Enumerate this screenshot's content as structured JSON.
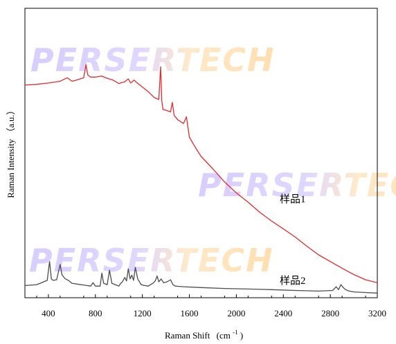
{
  "chart_data": {
    "type": "line",
    "title": "",
    "xlabel": "Raman Shift",
    "xlabel_unit": "(cm",
    "xlabel_sup": "-1",
    "xlabel_close": ")",
    "ylabel": "Raman Intensity （a.u.）",
    "xlim": [
      200,
      3200
    ],
    "ylim": [
      0,
      100
    ],
    "xticks": [
      400,
      800,
      1200,
      1600,
      2000,
      2400,
      2800,
      3200
    ],
    "yticks_shown": false,
    "grid": false,
    "legend": "none",
    "watermark": "PERSERTECH",
    "series": [
      {
        "name": "样品1",
        "color": "#e8282a",
        "x": [
          200,
          300,
          400,
          500,
          560,
          600,
          640,
          700,
          720,
          735,
          760,
          800,
          850,
          900,
          950,
          1000,
          1050,
          1080,
          1100,
          1130,
          1150,
          1200,
          1250,
          1300,
          1340,
          1355,
          1365,
          1375,
          1400,
          1440,
          1455,
          1470,
          1500,
          1550,
          1575,
          1600,
          1650,
          1700,
          1800,
          1900,
          2000,
          2100,
          2200,
          2300,
          2400,
          2500,
          2600,
          2700,
          2800,
          2900,
          3000,
          3100,
          3200
        ],
        "y": [
          73.5,
          73.7,
          74.2,
          74.8,
          76.0,
          74.8,
          75.2,
          76.0,
          80.5,
          77.0,
          76.2,
          76.2,
          76.6,
          75.8,
          75.2,
          74.0,
          74.6,
          75.6,
          74.2,
          75.2,
          74.4,
          72.8,
          71.2,
          69.2,
          68.5,
          79.8,
          68.0,
          65.0,
          64.8,
          64.2,
          67.5,
          63.0,
          61.5,
          60.2,
          62.5,
          55.5,
          52.0,
          48.8,
          44.5,
          40.0,
          36.2,
          33.0,
          29.5,
          26.5,
          23.8,
          21.0,
          17.8,
          14.8,
          12.5,
          10.2,
          8.0,
          6.2,
          5.2
        ]
      },
      {
        "name": "样品2",
        "color": "#4a4a4a",
        "x": [
          200,
          300,
          360,
          390,
          410,
          425,
          440,
          470,
          500,
          515,
          540,
          570,
          600,
          630,
          660,
          700,
          760,
          780,
          800,
          840,
          855,
          870,
          900,
          920,
          940,
          970,
          1000,
          1015,
          1030,
          1050,
          1065,
          1080,
          1095,
          1110,
          1125,
          1140,
          1160,
          1190,
          1220,
          1250,
          1270,
          1290,
          1310,
          1325,
          1340,
          1360,
          1380,
          1410,
          1440,
          1460,
          1480,
          1550,
          1700,
          1900,
          2100,
          2300,
          2500,
          2700,
          2820,
          2850,
          2870,
          2890,
          2910,
          2930,
          2960,
          3000,
          3100,
          3200
        ],
        "y": [
          4.2,
          4.5,
          5.5,
          6.0,
          12.5,
          6.5,
          6.0,
          6.2,
          11.5,
          8.0,
          6.6,
          6.0,
          5.0,
          4.8,
          4.6,
          4.4,
          4.0,
          5.2,
          4.0,
          4.0,
          8.5,
          5.0,
          4.5,
          9.5,
          5.0,
          4.5,
          4.0,
          5.0,
          5.5,
          7.0,
          5.8,
          10.0,
          6.5,
          7.8,
          6.0,
          10.5,
          6.5,
          4.5,
          4.2,
          4.0,
          4.5,
          5.0,
          5.8,
          7.5,
          5.5,
          6.5,
          5.2,
          5.5,
          6.2,
          4.5,
          4.0,
          3.8,
          3.5,
          3.2,
          3.0,
          2.8,
          2.5,
          2.3,
          2.5,
          3.8,
          2.8,
          4.5,
          3.5,
          2.8,
          2.3,
          2.0,
          1.8,
          1.6
        ]
      }
    ]
  }
}
